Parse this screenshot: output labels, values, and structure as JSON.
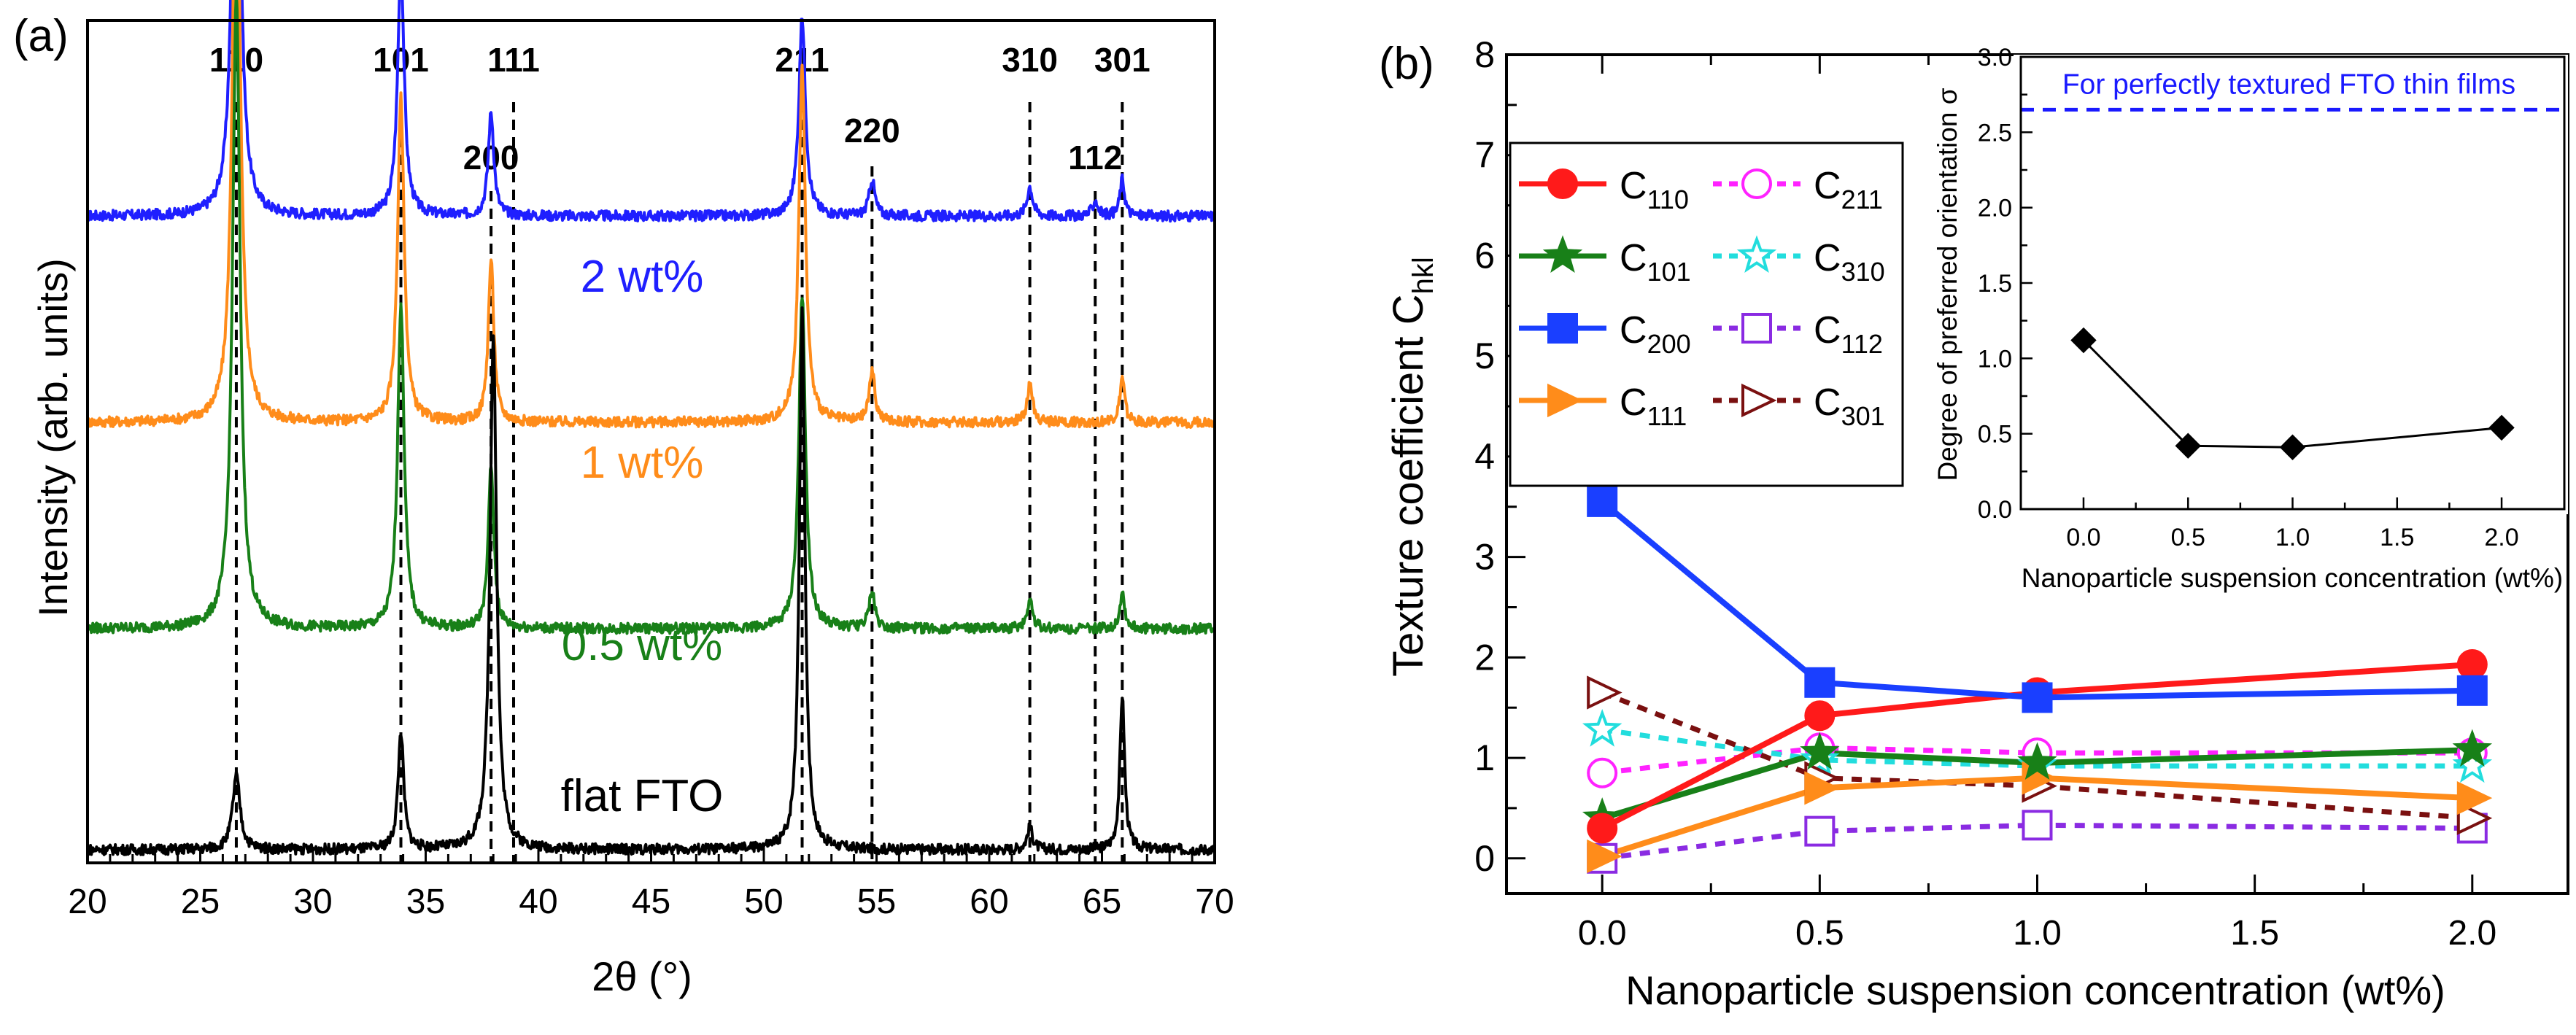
{
  "chart_data": [
    {
      "panel_label": "(a)",
      "type": "line",
      "xlabel": "2θ (°)",
      "ylabel": "Intensity (arb. units)",
      "xlim": [
        20,
        70
      ],
      "xticks": [
        20,
        25,
        30,
        35,
        40,
        45,
        50,
        55,
        60,
        65,
        70
      ],
      "reference_lines": [
        {
          "x": 26.6,
          "label": "110"
        },
        {
          "x": 33.9,
          "label": "101"
        },
        {
          "x": 37.9,
          "label": "200"
        },
        {
          "x": 38.9,
          "label": "111"
        },
        {
          "x": 51.7,
          "label": "211"
        },
        {
          "x": 54.8,
          "label": "220"
        },
        {
          "x": 61.8,
          "label": "310"
        },
        {
          "x": 64.7,
          "label": "112"
        },
        {
          "x": 65.9,
          "label": "301"
        }
      ],
      "series": [
        {
          "name": "2 wt%",
          "color": "#1f1fff",
          "baseline": 0.86,
          "peaks": [
            [
              26.6,
              0.78,
              0.4
            ],
            [
              33.9,
              0.34,
              0.35
            ],
            [
              37.9,
              0.14,
              0.3
            ],
            [
              51.7,
              0.27,
              0.35
            ],
            [
              54.8,
              0.05,
              0.3
            ],
            [
              61.8,
              0.04,
              0.3
            ],
            [
              64.7,
              0.02,
              0.3
            ],
            [
              65.9,
              0.05,
              0.25
            ]
          ]
        },
        {
          "name": "1 wt%",
          "color": "#ff8c1a",
          "baseline": 0.58,
          "peaks": [
            [
              26.6,
              0.87,
              0.4
            ],
            [
              33.9,
              0.44,
              0.35
            ],
            [
              37.9,
              0.22,
              0.3
            ],
            [
              51.7,
              0.48,
              0.35
            ],
            [
              54.8,
              0.07,
              0.3
            ],
            [
              61.8,
              0.05,
              0.3
            ],
            [
              65.9,
              0.06,
              0.25
            ]
          ]
        },
        {
          "name": "0.5 wt%",
          "color": "#188018",
          "baseline": 0.3,
          "peaks": [
            [
              26.6,
              0.86,
              0.4
            ],
            [
              33.9,
              0.44,
              0.35
            ],
            [
              37.9,
              0.22,
              0.3
            ],
            [
              51.7,
              0.45,
              0.35
            ],
            [
              54.8,
              0.05,
              0.3
            ],
            [
              61.8,
              0.04,
              0.3
            ],
            [
              65.9,
              0.05,
              0.25
            ]
          ]
        },
        {
          "name": "flat FTO",
          "color": "#000000",
          "baseline": 0.0,
          "peaks": [
            [
              26.6,
              0.1,
              0.4
            ],
            [
              33.9,
              0.16,
              0.3
            ],
            [
              38.0,
              0.7,
              0.35
            ],
            [
              51.7,
              0.73,
              0.3
            ],
            [
              61.8,
              0.03,
              0.3
            ],
            [
              65.9,
              0.21,
              0.25
            ]
          ]
        }
      ]
    },
    {
      "panel_label": "(b)",
      "type": "line",
      "xlabel": "Nanoparticle suspension concentration (wt%)",
      "ylabel_main": "Texture coefficient C",
      "ylabel_sub": "hkl",
      "xlim": [
        -0.22,
        2.22
      ],
      "ylim": [
        -0.35,
        8
      ],
      "xticks": [
        0.0,
        0.5,
        1.0,
        1.5,
        2.0
      ],
      "xtick_labels": [
        "0.0",
        "0.5",
        "1.0",
        "1.5",
        "2.0"
      ],
      "yticks": [
        0,
        1,
        2,
        3,
        4,
        5,
        6,
        7,
        8
      ],
      "x": [
        0.0,
        0.5,
        1.0,
        2.0
      ],
      "series": [
        {
          "name": "C110",
          "label_main": "C",
          "label_sub": "110",
          "color": "#ff1a1a",
          "marker": "circle",
          "filled": true,
          "dashed": false,
          "values": [
            0.3,
            1.42,
            1.65,
            1.93
          ]
        },
        {
          "name": "C101",
          "label_main": "C",
          "label_sub": "101",
          "color": "#188018",
          "marker": "star",
          "filled": true,
          "dashed": false,
          "values": [
            0.4,
            1.05,
            0.95,
            1.08
          ]
        },
        {
          "name": "C200",
          "label_main": "C",
          "label_sub": "200",
          "color": "#1a3fff",
          "marker": "square",
          "filled": true,
          "dashed": false,
          "values": [
            3.55,
            1.75,
            1.6,
            1.67
          ]
        },
        {
          "name": "C111",
          "label_main": "C",
          "label_sub": "111",
          "color": "#ff8c1a",
          "marker": "triangle-right",
          "filled": true,
          "dashed": false,
          "values": [
            0.02,
            0.7,
            0.8,
            0.6
          ]
        },
        {
          "name": "C211",
          "label_main": "C",
          "label_sub": "211",
          "color": "#ff22ff",
          "marker": "circle",
          "filled": false,
          "dashed": true,
          "values": [
            0.85,
            1.1,
            1.05,
            1.05
          ]
        },
        {
          "name": "C310",
          "label_main": "C",
          "label_sub": "310",
          "color": "#22dddd",
          "marker": "star",
          "filled": false,
          "dashed": true,
          "values": [
            1.28,
            0.98,
            0.92,
            0.92
          ]
        },
        {
          "name": "C112",
          "label_main": "C",
          "label_sub": "112",
          "color": "#8a2be2",
          "marker": "square",
          "filled": false,
          "dashed": true,
          "values": [
            0.0,
            0.27,
            0.33,
            0.3
          ]
        },
        {
          "name": "C301",
          "label_main": "C",
          "label_sub": "301",
          "color": "#7a1010",
          "marker": "triangle-right",
          "filled": false,
          "dashed": true,
          "values": [
            1.65,
            0.8,
            0.72,
            0.4
          ]
        }
      ]
    },
    {
      "panel_label": "(b) inset",
      "type": "line",
      "xlabel": "Nanoparticle suspension concentration (wt%)",
      "ylabel": "Degree of preferred orientation σ",
      "xlim": [
        -0.3,
        2.3
      ],
      "ylim": [
        0,
        3.0
      ],
      "xticks": [
        0.0,
        0.5,
        1.0,
        1.5,
        2.0
      ],
      "xtick_labels": [
        "0.0",
        "0.5",
        "1.0",
        "1.5",
        "2.0"
      ],
      "yticks": [
        0.0,
        0.5,
        1.0,
        1.5,
        2.0,
        2.5,
        3.0
      ],
      "ytick_labels": [
        "0.0",
        "0.5",
        "1.0",
        "1.5",
        "2.0",
        "2.5",
        "3.0"
      ],
      "x": [
        0.0,
        0.5,
        1.0,
        2.0
      ],
      "values": [
        1.12,
        0.42,
        0.41,
        0.54
      ],
      "reference_line": {
        "y": 2.65,
        "label": "For perfectly textured FTO thin films",
        "color": "#1a1aff"
      }
    }
  ]
}
